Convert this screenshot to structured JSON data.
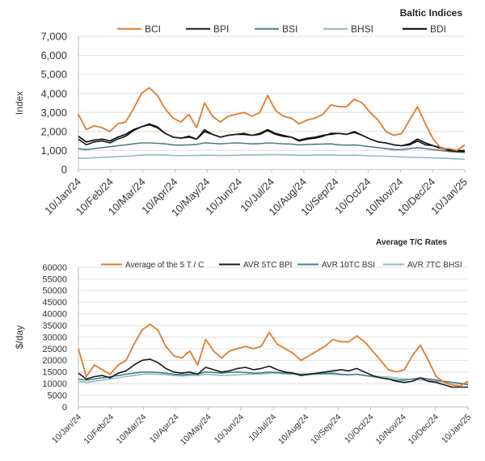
{
  "chart_data": [
    {
      "type": "line",
      "title": "Baltic Indices",
      "ylabel": "Index",
      "xlabel": "",
      "ylim": [
        0,
        7000
      ],
      "y_ticks": [
        "0",
        "1,000",
        "2,000",
        "3,000",
        "4,000",
        "5,000",
        "6,000",
        "7,000"
      ],
      "x_ticks": [
        "10/Jan/24",
        "10/Feb/24",
        "10/Mar/24",
        "10/Apr/24",
        "10/May/24",
        "10/Jun/24",
        "10/Jul/24",
        "10/Aug/24",
        "10/Sep/24",
        "10/Oct/24",
        "10/Nov/24",
        "10/Dec/24",
        "10/Jan/25"
      ],
      "grid": true,
      "legend_position": "top",
      "series": [
        {
          "name": "BCI",
          "color": "#e07b2a",
          "values": [
            2900,
            2100,
            2300,
            2200,
            2000,
            2400,
            2500,
            3200,
            4000,
            4300,
            3900,
            3200,
            2700,
            2500,
            2900,
            2200,
            3500,
            2800,
            2500,
            2800,
            2900,
            3000,
            2800,
            3000,
            3900,
            3100,
            2800,
            2700,
            2400,
            2600,
            2700,
            2900,
            3400,
            3300,
            3300,
            3700,
            3500,
            3000,
            2600,
            2000,
            1800,
            1900,
            2600,
            3300,
            2400,
            1600,
            1100,
            1100,
            1000,
            1300
          ]
        },
        {
          "name": "BPI",
          "color": "#1a1a1a",
          "values": [
            1600,
            1300,
            1450,
            1500,
            1400,
            1600,
            1750,
            2050,
            2250,
            2400,
            2250,
            1900,
            1700,
            1650,
            1700,
            1600,
            2100,
            1850,
            1700,
            1800,
            1850,
            1900,
            1800,
            1900,
            2100,
            1900,
            1800,
            1700,
            1550,
            1650,
            1700,
            1800,
            1850,
            1900,
            1850,
            2000,
            1800,
            1600,
            1450,
            1400,
            1300,
            1250,
            1300,
            1500,
            1300,
            1250,
            1150,
            1000,
            950,
            950
          ]
        },
        {
          "name": "BSI",
          "color": "#4d7f85",
          "values": [
            1100,
            1050,
            1100,
            1150,
            1200,
            1250,
            1300,
            1350,
            1400,
            1400,
            1380,
            1350,
            1300,
            1280,
            1300,
            1320,
            1400,
            1380,
            1350,
            1380,
            1400,
            1380,
            1350,
            1360,
            1400,
            1380,
            1350,
            1340,
            1300,
            1320,
            1330,
            1340,
            1350,
            1300,
            1280,
            1300,
            1250,
            1200,
            1150,
            1100,
            1050,
            1050,
            1100,
            1150,
            1100,
            1050,
            1000,
            950,
            920,
            900
          ]
        },
        {
          "name": "BHSI",
          "color": "#8fbcbf",
          "values": [
            600,
            600,
            620,
            640,
            660,
            680,
            700,
            720,
            760,
            780,
            770,
            760,
            740,
            730,
            740,
            740,
            760,
            750,
            740,
            740,
            750,
            760,
            760,
            770,
            780,
            780,
            770,
            760,
            750,
            750,
            760,
            760,
            760,
            750,
            750,
            760,
            740,
            720,
            710,
            700,
            680,
            660,
            650,
            640,
            630,
            610,
            600,
            580,
            560,
            540
          ]
        },
        {
          "name": "BDI",
          "color": "#000000",
          "values": [
            1750,
            1450,
            1550,
            1600,
            1500,
            1700,
            1850,
            2100,
            2250,
            2350,
            2200,
            1900,
            1700,
            1650,
            1750,
            1600,
            2000,
            1850,
            1700,
            1800,
            1850,
            1850,
            1800,
            1850,
            2050,
            1850,
            1750,
            1700,
            1500,
            1600,
            1650,
            1750,
            1900,
            1900,
            1850,
            1950,
            1800,
            1600,
            1450,
            1400,
            1300,
            1250,
            1350,
            1600,
            1400,
            1250,
            1100,
            1050,
            1000,
            1000
          ]
        }
      ]
    },
    {
      "type": "line",
      "title": "Average T/C Rates",
      "ylabel": "$/day",
      "xlabel": "",
      "ylim": [
        0,
        60000
      ],
      "y_ticks": [
        "0",
        "5000",
        "10000",
        "15000",
        "20000",
        "25000",
        "30000",
        "35000",
        "40000",
        "45000",
        "50000",
        "55000",
        "60000"
      ],
      "x_ticks": [
        "10/Jan/24",
        "10/Feb/24",
        "10/Mar/24",
        "10/Apr/24",
        "10/May/24",
        "10/Jun/24",
        "10/Jul/24",
        "10/Aug/24",
        "10/Sep/24",
        "10/Oct/24",
        "10/Nov/24",
        "10/Dec/24",
        "10/Jan/25"
      ],
      "grid": true,
      "legend_position": "top",
      "series": [
        {
          "name": "Average of the 5 T / C",
          "color": "#e07b2a",
          "values": [
            25000,
            13000,
            18000,
            16000,
            14000,
            18000,
            20000,
            27000,
            33000,
            35500,
            33000,
            26000,
            22000,
            21000,
            24000,
            18000,
            29000,
            24000,
            21000,
            24000,
            25000,
            26000,
            25000,
            26000,
            32000,
            27000,
            25000,
            23000,
            20000,
            22000,
            24000,
            26000,
            29000,
            28000,
            28000,
            30500,
            28000,
            24000,
            20000,
            16000,
            15000,
            16000,
            22000,
            26500,
            20000,
            13000,
            10500,
            9500,
            9000,
            11000
          ]
        },
        {
          "name": "AVR 5TC BPI",
          "color": "#1a1a1a",
          "values": [
            14500,
            12000,
            13000,
            13500,
            12500,
            14500,
            15500,
            18000,
            20000,
            20500,
            19000,
            16500,
            15000,
            14500,
            15000,
            14000,
            17000,
            16000,
            15000,
            15500,
            16500,
            17000,
            16000,
            16500,
            17500,
            16000,
            15000,
            14500,
            13500,
            14000,
            14500,
            15000,
            15500,
            16000,
            15500,
            16500,
            15000,
            13500,
            12500,
            12000,
            11000,
            10500,
            11000,
            12500,
            11000,
            10500,
            9500,
            8500,
            8500,
            8500
          ]
        },
        {
          "name": "AVR 10TC BSI",
          "color": "#4d7f85",
          "values": [
            12000,
            11500,
            12000,
            12500,
            13000,
            13500,
            14000,
            14500,
            15000,
            15000,
            14800,
            14500,
            14000,
            13800,
            14000,
            14200,
            15000,
            14800,
            14500,
            14800,
            15000,
            14800,
            14500,
            14600,
            15000,
            14800,
            14500,
            14400,
            14000,
            14200,
            14300,
            14400,
            14500,
            14000,
            13800,
            14000,
            13500,
            13000,
            12500,
            12000,
            11500,
            11500,
            12000,
            12500,
            12000,
            11500,
            11000,
            10500,
            10000,
            9500
          ]
        },
        {
          "name": "AVR 7TC BHSI",
          "color": "#8fbcbf",
          "values": [
            11000,
            10500,
            11000,
            11500,
            12000,
            12500,
            13000,
            13500,
            14000,
            14200,
            14000,
            13800,
            13500,
            13300,
            13500,
            13500,
            14000,
            13800,
            13500,
            13600,
            13800,
            14000,
            14000,
            14200,
            14400,
            14400,
            14200,
            14000,
            13800,
            13800,
            14000,
            14000,
            14000,
            13800,
            13800,
            14000,
            13600,
            13200,
            13000,
            12800,
            12400,
            12000,
            11800,
            11600,
            11400,
            11000,
            10800,
            10500,
            10200,
            10000
          ]
        }
      ]
    }
  ]
}
